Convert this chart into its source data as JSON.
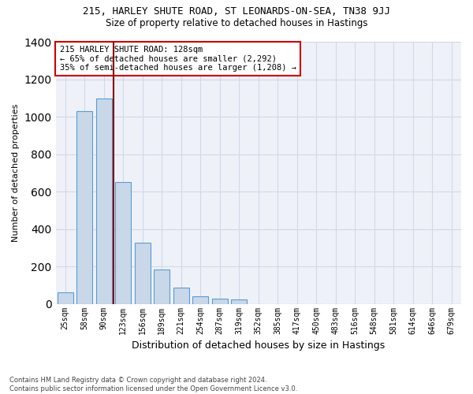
{
  "title1": "215, HARLEY SHUTE ROAD, ST LEONARDS-ON-SEA, TN38 9JJ",
  "title2": "Size of property relative to detached houses in Hastings",
  "xlabel": "Distribution of detached houses by size in Hastings",
  "ylabel": "Number of detached properties",
  "footnote1": "Contains HM Land Registry data © Crown copyright and database right 2024.",
  "footnote2": "Contains public sector information licensed under the Open Government Licence v3.0.",
  "bar_color": "#c8d8e8",
  "bar_edge_color": "#5b9bd5",
  "grid_color": "#d0d8e8",
  "background_color": "#eef2f8",
  "annotation_line_color": "#8b0000",
  "annotation_box_edge_color": "#cc0000",
  "categories": [
    "25sqm",
    "58sqm",
    "90sqm",
    "123sqm",
    "156sqm",
    "189sqm",
    "221sqm",
    "254sqm",
    "287sqm",
    "319sqm",
    "352sqm",
    "385sqm",
    "417sqm",
    "450sqm",
    "483sqm",
    "516sqm",
    "548sqm",
    "581sqm",
    "614sqm",
    "646sqm",
    "679sqm"
  ],
  "values": [
    60,
    1030,
    1095,
    650,
    325,
    185,
    85,
    40,
    27,
    25,
    0,
    0,
    0,
    0,
    0,
    0,
    0,
    0,
    0,
    0,
    0
  ],
  "annotation_text_line1": "215 HARLEY SHUTE ROAD: 128sqm",
  "annotation_text_line2": "← 65% of detached houses are smaller (2,292)",
  "annotation_text_line3": "35% of semi-detached houses are larger (1,208) →",
  "ylim": [
    0,
    1400
  ],
  "line_bar_index": 2.5
}
